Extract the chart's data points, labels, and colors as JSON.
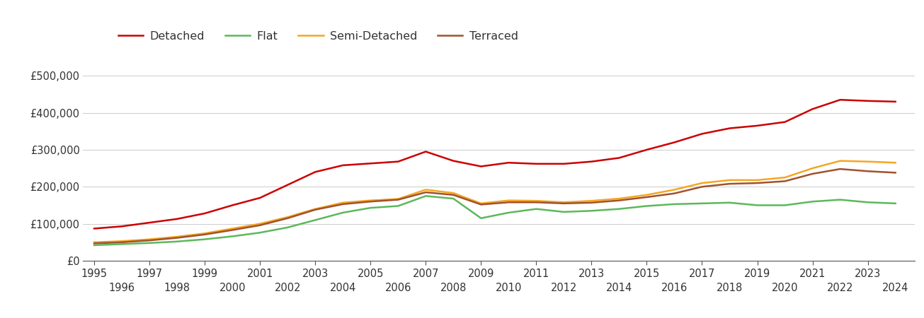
{
  "years": [
    1995,
    1996,
    1997,
    1998,
    1999,
    2000,
    2001,
    2002,
    2003,
    2004,
    2005,
    2006,
    2007,
    2008,
    2009,
    2010,
    2011,
    2012,
    2013,
    2014,
    2015,
    2016,
    2017,
    2018,
    2019,
    2020,
    2021,
    2022,
    2023,
    2024
  ],
  "detached": [
    87000,
    93000,
    103000,
    113000,
    128000,
    150000,
    170000,
    205000,
    240000,
    258000,
    263000,
    268000,
    295000,
    270000,
    255000,
    265000,
    262000,
    262000,
    268000,
    278000,
    300000,
    320000,
    343000,
    358000,
    365000,
    375000,
    410000,
    435000,
    432000,
    430000
  ],
  "flat": [
    42000,
    45000,
    48000,
    52000,
    58000,
    66000,
    76000,
    90000,
    110000,
    130000,
    143000,
    148000,
    175000,
    168000,
    115000,
    130000,
    140000,
    132000,
    135000,
    140000,
    148000,
    153000,
    155000,
    157000,
    150000,
    150000,
    160000,
    165000,
    158000,
    155000
  ],
  "semi_detached": [
    50000,
    53000,
    58000,
    65000,
    74000,
    87000,
    100000,
    118000,
    140000,
    157000,
    163000,
    167000,
    192000,
    183000,
    155000,
    163000,
    162000,
    158000,
    162000,
    168000,
    178000,
    192000,
    210000,
    218000,
    218000,
    225000,
    250000,
    270000,
    268000,
    265000
  ],
  "terraced": [
    47000,
    50000,
    55000,
    62000,
    71000,
    83000,
    96000,
    115000,
    138000,
    153000,
    160000,
    165000,
    185000,
    178000,
    152000,
    158000,
    158000,
    155000,
    157000,
    163000,
    172000,
    182000,
    200000,
    208000,
    210000,
    215000,
    235000,
    248000,
    242000,
    238000
  ],
  "colors": {
    "detached": "#cc0000",
    "flat": "#5cb85c",
    "semi_detached": "#f5a623",
    "terraced": "#a0522d"
  },
  "legend_labels": [
    "Detached",
    "Flat",
    "Semi-Detached",
    "Terraced"
  ],
  "ylim": [
    0,
    550000
  ],
  "yticks": [
    0,
    100000,
    200000,
    300000,
    400000,
    500000
  ],
  "ytick_labels": [
    "£0",
    "£100,000",
    "£200,000",
    "£300,000",
    "£400,000",
    "£500,000"
  ],
  "background_color": "#ffffff",
  "grid_color": "#cccccc",
  "line_width": 1.8,
  "tick_label_fontsize": 10.5,
  "legend_fontsize": 11.5
}
